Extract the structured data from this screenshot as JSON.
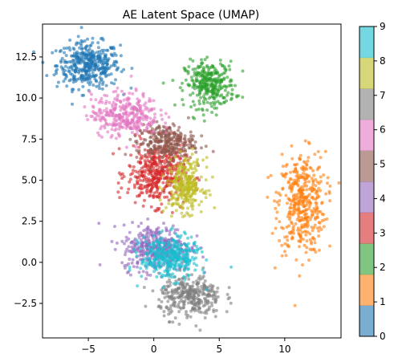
{
  "chart_data": {
    "type": "scatter",
    "title": "AE Latent Space (UMAP)",
    "xlabel": "",
    "ylabel": "",
    "xlim": [
      -8.5,
      14.3
    ],
    "ylim": [
      -4.6,
      14.5
    ],
    "x_ticks": [
      -5,
      0,
      5,
      10
    ],
    "y_ticks": [
      -2.5,
      0.0,
      2.5,
      5.0,
      7.5,
      10.0,
      12.5
    ],
    "x_tick_labels": [
      "−5",
      "0",
      "5",
      "10"
    ],
    "y_tick_labels": [
      "−2.5",
      "0.0",
      "2.5",
      "5.0",
      "7.5",
      "10.0",
      "12.5"
    ],
    "grid": false,
    "colorbar": {
      "min": 0,
      "max": 9,
      "ticks": [
        "0",
        "1",
        "2",
        "3",
        "4",
        "5",
        "6",
        "7",
        "8",
        "9"
      ],
      "colors": [
        "#1f77b4",
        "#ff7f0e",
        "#2ca02c",
        "#d62728",
        "#9467bd",
        "#8c564b",
        "#e377c2",
        "#7f7f7f",
        "#bcbd22",
        "#17becf"
      ]
    },
    "clusters": [
      {
        "label": 0,
        "color": "#1f77b4",
        "cx": -5.0,
        "cy": 12.0,
        "rx": 2.4,
        "ry": 1.4,
        "n": 420
      },
      {
        "label": 1,
        "color": "#ff7f0e",
        "cx": 11.3,
        "cy": 3.6,
        "rx": 1.8,
        "ry": 3.1,
        "n": 420
      },
      {
        "label": 2,
        "color": "#2ca02c",
        "cx": 4.3,
        "cy": 10.8,
        "rx": 1.9,
        "ry": 1.4,
        "n": 320
      },
      {
        "label": 3,
        "color": "#d62728",
        "cx": 0.2,
        "cy": 5.4,
        "rx": 2.2,
        "ry": 1.9,
        "n": 420
      },
      {
        "label": 4,
        "color": "#9467bd",
        "cx": 0.2,
        "cy": 0.9,
        "rx": 2.6,
        "ry": 1.4,
        "n": 380
      },
      {
        "label": 5,
        "color": "#8c564b",
        "cx": 0.9,
        "cy": 7.3,
        "rx": 2.2,
        "ry": 1.1,
        "n": 280
      },
      {
        "label": 6,
        "color": "#e377c2",
        "cx": -2.2,
        "cy": 9.0,
        "rx": 2.6,
        "ry": 1.3,
        "n": 330
      },
      {
        "label": 7,
        "color": "#7f7f7f",
        "cx": 2.8,
        "cy": -2.1,
        "rx": 2.4,
        "ry": 1.3,
        "n": 340
      },
      {
        "label": 8,
        "color": "#bcbd22",
        "cx": 2.4,
        "cy": 4.7,
        "rx": 1.4,
        "ry": 1.6,
        "n": 280
      },
      {
        "label": 9,
        "color": "#17becf",
        "cx": 1.2,
        "cy": 0.3,
        "rx": 2.2,
        "ry": 1.3,
        "n": 360
      }
    ]
  }
}
